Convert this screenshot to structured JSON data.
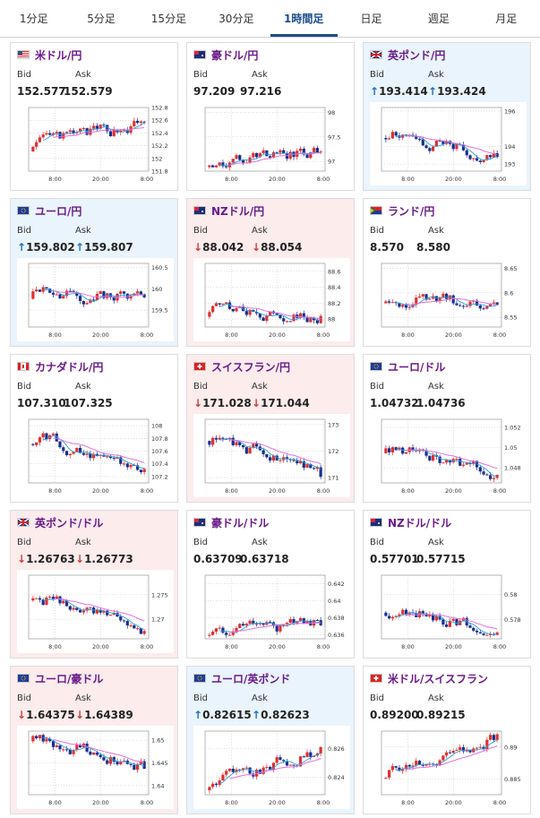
{
  "tabs": [
    {
      "label": "1分足",
      "active": false
    },
    {
      "label": "5分足",
      "active": false
    },
    {
      "label": "15分足",
      "active": false
    },
    {
      "label": "30分足",
      "active": false
    },
    {
      "label": "1時間足",
      "active": true
    },
    {
      "label": "日足",
      "active": false
    },
    {
      "label": "週足",
      "active": false
    },
    {
      "label": "月足",
      "active": false
    }
  ],
  "labels": {
    "bid": "Bid",
    "ask": "Ask"
  },
  "colors": {
    "up_bg": "#e9f4fc",
    "down_bg": "#fcecec",
    "up_arrow": "#1f6fc6",
    "down_arrow": "#d23c3c",
    "title": "#6a1a8a",
    "candle_up": "#e03030",
    "candle_down": "#1a2f8f",
    "ma_short": "#2aa0d8",
    "ma_long": "#e070e0"
  },
  "cards": [
    {
      "pair": "米ドル/円",
      "flag": "us",
      "trend": "flat",
      "bid": "152.577",
      "ask": "152.579",
      "arrow": "",
      "chart_data": {
        "type": "candlestick",
        "x_ticks": [
          "8:00",
          "20:00",
          "8:00"
        ],
        "y_ticks": [
          "152.8",
          "152.6",
          "152.4",
          "152.2",
          "152",
          "151.8"
        ],
        "ylim": [
          151.8,
          152.8
        ],
        "start": 152.2,
        "end": 152.57
      }
    },
    {
      "pair": "豪ドル/円",
      "flag": "au",
      "trend": "flat",
      "bid": "97.209",
      "ask": "97.216",
      "arrow": "",
      "chart_data": {
        "type": "candlestick",
        "x_ticks": [
          "8:00",
          "20:00",
          "8:00"
        ],
        "y_ticks": [
          "98",
          "97.5",
          "97"
        ],
        "ylim": [
          96.8,
          98.1
        ],
        "start": 97.0,
        "end": 97.2
      }
    },
    {
      "pair": "英ポンド/円",
      "flag": "gb",
      "trend": "up",
      "bid": "193.414",
      "ask": "193.424",
      "arrow": "↑",
      "chart_data": {
        "type": "candlestick",
        "x_ticks": [
          "8:00",
          "20:00",
          "8:00"
        ],
        "y_ticks": [
          "196",
          "194",
          "193"
        ],
        "ylim": [
          192.6,
          196.2
        ],
        "start": 194.8,
        "end": 193.4
      }
    },
    {
      "pair": "ユーロ/円",
      "flag": "eu",
      "trend": "up",
      "bid": "159.802",
      "ask": "159.807",
      "arrow": "↑",
      "chart_data": {
        "type": "candlestick",
        "x_ticks": [
          "8:00",
          "20:00",
          "8:00"
        ],
        "y_ticks": [
          "160.5",
          "160",
          "159.5"
        ],
        "ylim": [
          159.1,
          160.6
        ],
        "start": 159.9,
        "end": 159.8
      }
    },
    {
      "pair": "NZドル/円",
      "flag": "nz",
      "trend": "down",
      "bid": "88.042",
      "ask": "88.054",
      "arrow": "↓",
      "chart_data": {
        "type": "candlestick",
        "x_ticks": [
          "8:00",
          "20:00",
          "8:00"
        ],
        "y_ticks": [
          "88.6",
          "88.4",
          "88.2",
          "88"
        ],
        "ylim": [
          87.9,
          88.7
        ],
        "start": 88.1,
        "end": 88.04
      }
    },
    {
      "pair": "ランド/円",
      "flag": "za",
      "trend": "flat",
      "bid": "8.570",
      "ask": "8.580",
      "arrow": "",
      "chart_data": {
        "type": "candlestick",
        "x_ticks": [
          "8:00",
          "20:00",
          "8:00"
        ],
        "y_ticks": [
          "8.65",
          "8.6",
          "8.55"
        ],
        "ylim": [
          8.53,
          8.66
        ],
        "start": 8.59,
        "end": 8.575
      }
    },
    {
      "pair": "カナダドル/円",
      "flag": "ca",
      "trend": "flat",
      "bid": "107.310",
      "ask": "107.325",
      "arrow": "",
      "chart_data": {
        "type": "candlestick",
        "x_ticks": [
          "8:00",
          "20:00",
          "8:00"
        ],
        "y_ticks": [
          "108",
          "107.8",
          "107.6",
          "107.4",
          "107.2"
        ],
        "ylim": [
          107.1,
          108.1
        ],
        "start": 107.8,
        "end": 107.32
      }
    },
    {
      "pair": "スイスフラン/円",
      "flag": "ch",
      "trend": "down",
      "bid": "171.028",
      "ask": "171.044",
      "arrow": "↓",
      "chart_data": {
        "type": "candlestick",
        "x_ticks": [
          "8:00",
          "20:00",
          "8:00"
        ],
        "y_ticks": [
          "173",
          "172",
          "171"
        ],
        "ylim": [
          170.8,
          173.2
        ],
        "start": 172.6,
        "end": 171.03
      }
    },
    {
      "pair": "ユーロ/ドル",
      "flag": "eu",
      "trend": "flat",
      "bid": "1.04732",
      "ask": "1.04736",
      "arrow": "",
      "chart_data": {
        "type": "candlestick",
        "x_ticks": [
          "8:00",
          "20:00",
          "8:00"
        ],
        "y_ticks": [
          "1.052",
          "1.05",
          "1.048"
        ],
        "ylim": [
          1.0465,
          1.0528
        ],
        "start": 1.05,
        "end": 1.0473
      }
    },
    {
      "pair": "英ポンド/ドル",
      "flag": "gb",
      "trend": "down",
      "bid": "1.26763",
      "ask": "1.26773",
      "arrow": "↓",
      "chart_data": {
        "type": "candlestick",
        "x_ticks": [
          "8:00",
          "20:00",
          "8:00"
        ],
        "y_ticks": [
          "1.275",
          "1.27"
        ],
        "ylim": [
          1.266,
          1.279
        ],
        "start": 1.275,
        "end": 1.2676
      }
    },
    {
      "pair": "豪ドル/ドル",
      "flag": "au",
      "trend": "flat",
      "bid": "0.63709",
      "ask": "0.63718",
      "arrow": "",
      "chart_data": {
        "type": "candlestick",
        "x_ticks": [
          "8:00",
          "20:00",
          "8:00"
        ],
        "y_ticks": [
          "0.642",
          "0.64",
          "0.638",
          "0.636"
        ],
        "ylim": [
          0.6355,
          0.643
        ],
        "start": 0.636,
        "end": 0.6371
      }
    },
    {
      "pair": "NZドル/ドル",
      "flag": "nz",
      "trend": "flat",
      "bid": "0.57701",
      "ask": "0.57715",
      "arrow": "",
      "chart_data": {
        "type": "candlestick",
        "x_ticks": [
          "8:00",
          "20:00",
          "8:00"
        ],
        "y_ticks": [
          "0.58",
          "0.578"
        ],
        "ylim": [
          0.5765,
          0.5815
        ],
        "start": 0.579,
        "end": 0.577
      }
    },
    {
      "pair": "ユーロ/豪ドル",
      "flag": "eu",
      "trend": "down",
      "bid": "1.64375",
      "ask": "1.64389",
      "arrow": "↓",
      "chart_data": {
        "type": "candlestick",
        "x_ticks": [
          "8:00",
          "20:00",
          "8:00"
        ],
        "y_ticks": [
          "1.65",
          "1.645",
          "1.64"
        ],
        "ylim": [
          1.638,
          1.652
        ],
        "start": 1.651,
        "end": 1.6437
      }
    },
    {
      "pair": "ユーロ/英ポンド",
      "flag": "eu",
      "trend": "up",
      "bid": "0.82615",
      "ask": "0.82623",
      "arrow": "↑",
      "chart_data": {
        "type": "candlestick",
        "x_ticks": [
          "8:00",
          "20:00",
          "8:00"
        ],
        "y_ticks": [
          "0.826",
          "0.824"
        ],
        "ylim": [
          0.8228,
          0.8272
        ],
        "start": 0.8235,
        "end": 0.8261
      }
    },
    {
      "pair": "米ドル/スイスフラン",
      "flag": "ch",
      "trend": "flat",
      "bid": "0.89200",
      "ask": "0.89215",
      "arrow": "",
      "chart_data": {
        "type": "candlestick",
        "x_ticks": [
          "8:00",
          "20:00",
          "8:00"
        ],
        "y_ticks": [
          "0.89",
          "0.885"
        ],
        "ylim": [
          0.8825,
          0.8925
        ],
        "start": 0.886,
        "end": 0.892
      }
    }
  ]
}
